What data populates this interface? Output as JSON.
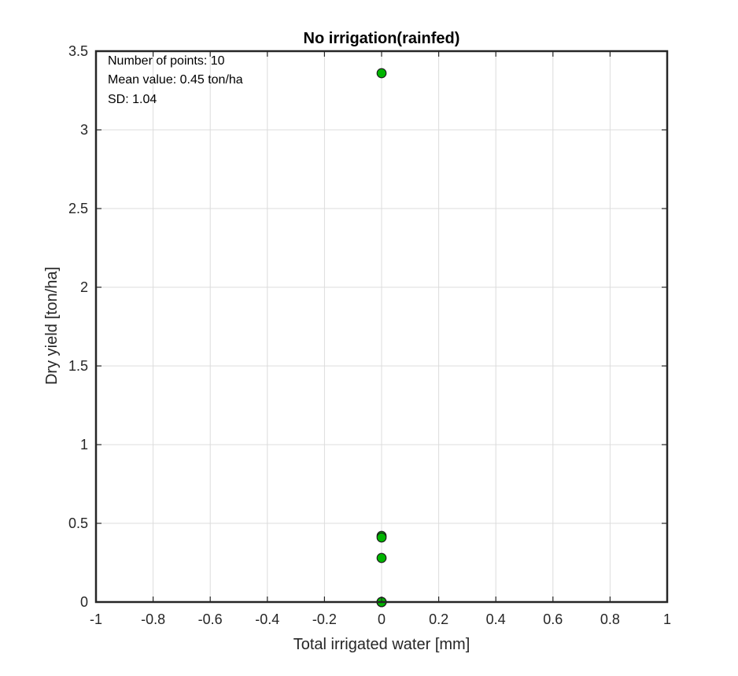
{
  "chart_data": {
    "type": "scatter",
    "title": "No irrigation(rainfed)",
    "xlabel": "Total irrigated water [mm]",
    "ylabel": "Dry yield [ton/ha]",
    "xlim": [
      -1,
      1
    ],
    "ylim": [
      0,
      3.5
    ],
    "xticks": [
      -1,
      -0.8,
      -0.6,
      -0.4,
      -0.2,
      0,
      0.2,
      0.4,
      0.6,
      0.8,
      1
    ],
    "xtick_labels": [
      "-1",
      "-0.8",
      "-0.6",
      "-0.4",
      "-0.2",
      "0",
      "0.2",
      "0.4",
      "0.6",
      "0.8",
      "1"
    ],
    "yticks": [
      0,
      0.5,
      1,
      1.5,
      2,
      2.5,
      3,
      3.5
    ],
    "ytick_labels": [
      "0",
      "0.5",
      "1",
      "1.5",
      "2",
      "2.5",
      "3",
      "3.5"
    ],
    "grid": true,
    "annotations": [
      "Number of points: 10",
      "Mean value: 0.45 ton/ha",
      "SD: 1.04"
    ],
    "marker_color": "#00b400",
    "marker_edge": "#1a1a1a",
    "points": [
      {
        "x": 0,
        "y": 3.36
      },
      {
        "x": 0,
        "y": 0.42
      },
      {
        "x": 0,
        "y": 0.41
      },
      {
        "x": 0,
        "y": 0.28
      },
      {
        "x": 0,
        "y": 0
      },
      {
        "x": 0,
        "y": 0
      },
      {
        "x": 0,
        "y": 0
      },
      {
        "x": 0,
        "y": 0
      },
      {
        "x": 0,
        "y": 0
      },
      {
        "x": 0,
        "y": 0
      }
    ]
  }
}
